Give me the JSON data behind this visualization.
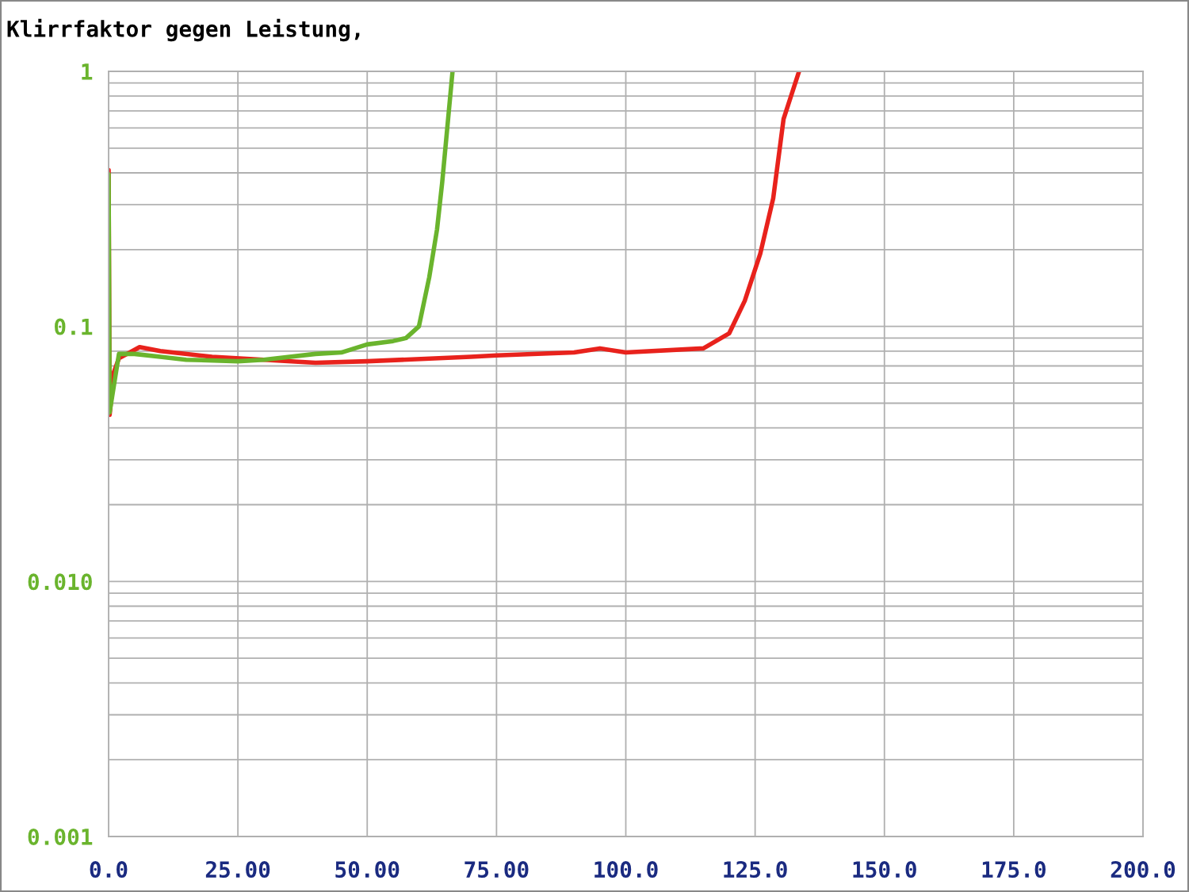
{
  "chart_data": {
    "type": "line",
    "title": "Klirrfaktor gegen Leistung,",
    "log": "y",
    "grid": true,
    "xlim": [
      0,
      200
    ],
    "ylim": [
      0.001,
      1
    ],
    "xticks": [
      {
        "value": 0,
        "label": "0.0"
      },
      {
        "value": 25,
        "label": "25.00"
      },
      {
        "value": 50,
        "label": "50.00"
      },
      {
        "value": 75,
        "label": "75.00"
      },
      {
        "value": 100,
        "label": "100.0"
      },
      {
        "value": 125,
        "label": "125.0"
      },
      {
        "value": 150,
        "label": "150.0"
      },
      {
        "value": 175,
        "label": "175.0"
      },
      {
        "value": 200,
        "label": "200.0"
      }
    ],
    "yticks": [
      {
        "value": 0.001,
        "label": "0.001"
      },
      {
        "value": 0.01,
        "label": "0.010"
      },
      {
        "value": 0.1,
        "label": "0.1"
      },
      {
        "value": 1,
        "label": "1"
      }
    ],
    "series": [
      {
        "color": "#e8221c",
        "x": [
          0,
          0.2,
          1,
          2,
          6,
          10,
          20,
          30,
          40,
          50,
          70,
          75,
          90,
          95,
          100,
          115,
          120,
          123,
          126,
          128.5,
          130.5,
          133.5
        ],
        "values": [
          0.41,
          0.045,
          0.066,
          0.075,
          0.083,
          0.08,
          0.076,
          0.074,
          0.072,
          0.073,
          0.076,
          0.077,
          0.079,
          0.082,
          0.079,
          0.082,
          0.094,
          0.126,
          0.193,
          0.318,
          0.65,
          1
        ]
      },
      {
        "color": "#6ab42d",
        "x": [
          0,
          0.2,
          2,
          5,
          10,
          15,
          25,
          30,
          40,
          45,
          50,
          55,
          57.5,
          60,
          62,
          63.5,
          64.5,
          65.5,
          66.5
        ],
        "values": [
          0.395,
          0.046,
          0.078,
          0.078,
          0.076,
          0.074,
          0.073,
          0.074,
          0.078,
          0.079,
          0.085,
          0.0876,
          0.09,
          0.1,
          0.156,
          0.24,
          0.367,
          0.606,
          1
        ]
      }
    ]
  }
}
